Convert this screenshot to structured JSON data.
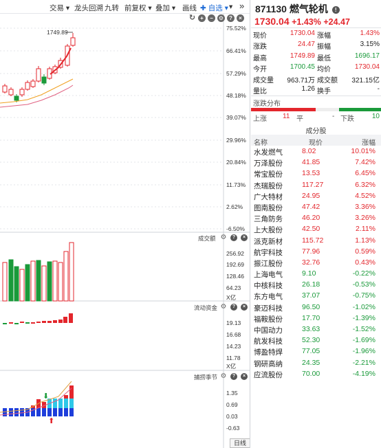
{
  "toolbar": {
    "items": [
      "交易 ▾",
      "龙头回溯",
      "九转",
      "前复权 ▾",
      "叠加 ▾",
      "画线",
      "✚ 自选 ▾",
      "▾",
      "»"
    ]
  },
  "price_axis": [
    "75.52%",
    "66.41%",
    "57.29%",
    "48.18%",
    "39.07%",
    "29.96%",
    "20.84%",
    "11.73%",
    "2.62%",
    "-6.50%"
  ],
  "max_label": "1749.89",
  "panels": {
    "volume": {
      "label": "成交额",
      "ticks": [
        "256.92",
        "192.69",
        "128.46",
        "64.23"
      ],
      "unit": "X亿"
    },
    "flow": {
      "label": "流动资金",
      "ticks": [
        "19.13",
        "16.68",
        "14.23",
        "11.78"
      ],
      "unit": "X亿"
    },
    "season": {
      "label": "捕捞季节",
      "ticks": [
        "1.35",
        "0.69",
        "0.03",
        "-0.63"
      ]
    }
  },
  "bottom_tab": "日线",
  "stock": {
    "code": "871130",
    "name": "燃气轮机",
    "price": "1730.04",
    "change_pct": "+1.43%",
    "change": "+24.47"
  },
  "quote": [
    {
      "l1": "现价",
      "v1": "1730.04",
      "c1": "red",
      "l2": "涨幅",
      "v2": "1.43%",
      "c2": "red"
    },
    {
      "l1": "涨跌",
      "v1": "24.47",
      "c1": "red",
      "l2": "振幅",
      "v2": "3.15%",
      "c2": ""
    },
    {
      "l1": "最高",
      "v1": "1749.89",
      "c1": "red",
      "l2": "最低",
      "v2": "1696.17",
      "c2": "green"
    },
    {
      "l1": "今开",
      "v1": "1700.45",
      "c1": "green",
      "l2": "均价",
      "v2": "1730.04",
      "c2": "red"
    },
    {
      "l1": "成交量",
      "v1": "963.71万",
      "c1": "",
      "l2": "成交额",
      "v2": "321.15亿",
      "c2": ""
    },
    {
      "l1": "量比",
      "v1": "1.26",
      "c1": "",
      "l2": "换手",
      "v2": "-",
      "c2": ""
    }
  ],
  "distribution": {
    "label": "涨跌分布",
    "up_label": "上涨",
    "up": "11",
    "flat_label": "平",
    "flat": "-",
    "down_label": "下跌",
    "down": "10"
  },
  "components": {
    "title": "成分股",
    "headers": [
      "名称",
      "现价",
      "涨幅"
    ],
    "rows": [
      {
        "name": "水发燃气",
        "price": "8.02",
        "pct": "10.01%",
        "up": true
      },
      {
        "name": "万泽股份",
        "price": "41.85",
        "pct": "7.42%",
        "up": true
      },
      {
        "name": "常宝股份",
        "price": "13.53",
        "pct": "6.45%",
        "up": true
      },
      {
        "name": "杰瑞股份",
        "price": "117.27",
        "pct": "6.32%",
        "up": true
      },
      {
        "name": "广大特材",
        "price": "24.95",
        "pct": "4.52%",
        "up": true
      },
      {
        "name": "图南股份",
        "price": "47.42",
        "pct": "3.36%",
        "up": true
      },
      {
        "name": "三角防务",
        "price": "46.20",
        "pct": "3.26%",
        "up": true
      },
      {
        "name": "上大股份",
        "price": "42.50",
        "pct": "2.11%",
        "up": true
      },
      {
        "name": "派克新材",
        "price": "115.72",
        "pct": "1.13%",
        "up": true
      },
      {
        "name": "航宇科技",
        "price": "77.96",
        "pct": "0.59%",
        "up": true
      },
      {
        "name": "振江股份",
        "price": "32.76",
        "pct": "0.43%",
        "up": true
      },
      {
        "name": "上海电气",
        "price": "9.10",
        "pct": "-0.22%",
        "up": false
      },
      {
        "name": "中核科技",
        "price": "26.18",
        "pct": "-0.53%",
        "up": false
      },
      {
        "name": "东方电气",
        "price": "37.07",
        "pct": "-0.75%",
        "up": false
      },
      {
        "name": "豪迈科技",
        "price": "96.50",
        "pct": "-1.02%",
        "up": false
      },
      {
        "name": "福鞍股份",
        "price": "17.70",
        "pct": "-1.39%",
        "up": false
      },
      {
        "name": "中国动力",
        "price": "33.63",
        "pct": "-1.52%",
        "up": false
      },
      {
        "name": "航发科技",
        "price": "52.30",
        "pct": "-1.69%",
        "up": false
      },
      {
        "name": "博盈特焊",
        "price": "77.05",
        "pct": "-1.96%",
        "up": false
      },
      {
        "name": "钢研高纳",
        "price": "24.35",
        "pct": "-2.21%",
        "up": false
      },
      {
        "name": "应流股份",
        "price": "70.00",
        "pct": "-4.19%",
        "up": false
      }
    ]
  },
  "colors": {
    "up": "#e3262c",
    "down": "#1a9a3a",
    "accent": "#1e6bd6"
  }
}
